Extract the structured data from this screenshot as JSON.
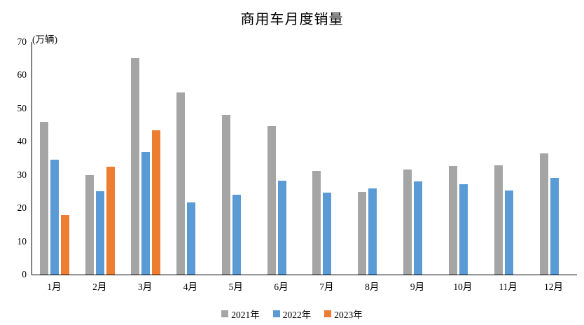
{
  "title": "商用车月度销量",
  "y_axis": {
    "unit_label": "(万辆)",
    "ticks": [
      70,
      60,
      50,
      40,
      30,
      20,
      10,
      0
    ]
  },
  "colors": {
    "series_2021": "#A5A5A5",
    "series_2022": "#5B9BD5",
    "series_2023": "#ED7D31",
    "axis": "#000000"
  },
  "chart_data": {
    "type": "bar",
    "title": "商用车月度销量",
    "xlabel": "",
    "ylabel": "(万辆)",
    "ylim": [
      0,
      70
    ],
    "grid": false,
    "legend_position": "bottom",
    "categories": [
      "1月",
      "2月",
      "3月",
      "4月",
      "5月",
      "6月",
      "7月",
      "8月",
      "9月",
      "10月",
      "11月",
      "12月"
    ],
    "series": [
      {
        "name": "2021年",
        "color": "#A5A5A5",
        "values": [
          45.9,
          29.9,
          65.2,
          54.8,
          48.1,
          44.6,
          31.2,
          24.9,
          31.7,
          32.6,
          33.0,
          36.4
        ]
      },
      {
        "name": "2022年",
        "color": "#5B9BD5",
        "values": [
          34.5,
          25.0,
          37.0,
          21.7,
          24.0,
          28.2,
          24.6,
          25.9,
          28.0,
          27.3,
          25.4,
          29.2
        ]
      },
      {
        "name": "2023年",
        "color": "#ED7D31",
        "values": [
          18.0,
          32.4,
          43.5,
          null,
          null,
          null,
          null,
          null,
          null,
          null,
          null,
          null
        ]
      }
    ]
  }
}
